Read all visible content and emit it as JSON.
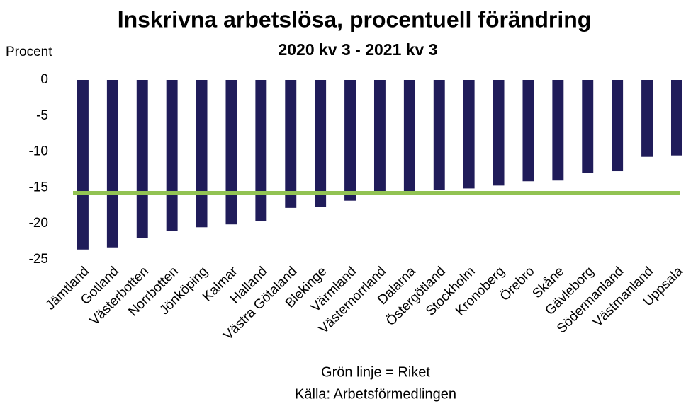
{
  "chart_data": {
    "type": "bar",
    "title": "Inskrivna arbetslösa, procentuell förändring",
    "subtitle": "2020 kv 3 - 2021 kv 3",
    "y_axis_label": "Procent",
    "categories": [
      "Jämtland",
      "Gotland",
      "Västerbotten",
      "Norrbotten",
      "Jönköping",
      "Kalmar",
      "Halland",
      "Västra Götaland",
      "Blekinge",
      "Värmland",
      "Västernorrland",
      "Dalarna",
      "Östergötland",
      "Stockholm",
      "Kronoberg",
      "Örebro",
      "Skåne",
      "Gävleborg",
      "Södermanland",
      "Västmanland",
      "Uppsala"
    ],
    "values": [
      -23.6,
      -23.3,
      -22.0,
      -21.0,
      -20.5,
      -20.1,
      -19.6,
      -17.8,
      -17.7,
      -16.8,
      -15.6,
      -15.5,
      -15.3,
      -15.1,
      -14.7,
      -14.1,
      -14.0,
      -12.9,
      -12.7,
      -10.7,
      -10.5
    ],
    "color": "#201c5a",
    "reference_line": {
      "value": -15.7,
      "color": "#92c353"
    },
    "note": "Grön linje = Riket",
    "source": "Källa: Arbetsförmedlingen",
    "ylim": [
      -25,
      0
    ],
    "yticks": [
      0,
      -5,
      -10,
      -15,
      -20,
      -25
    ],
    "grid": false
  }
}
